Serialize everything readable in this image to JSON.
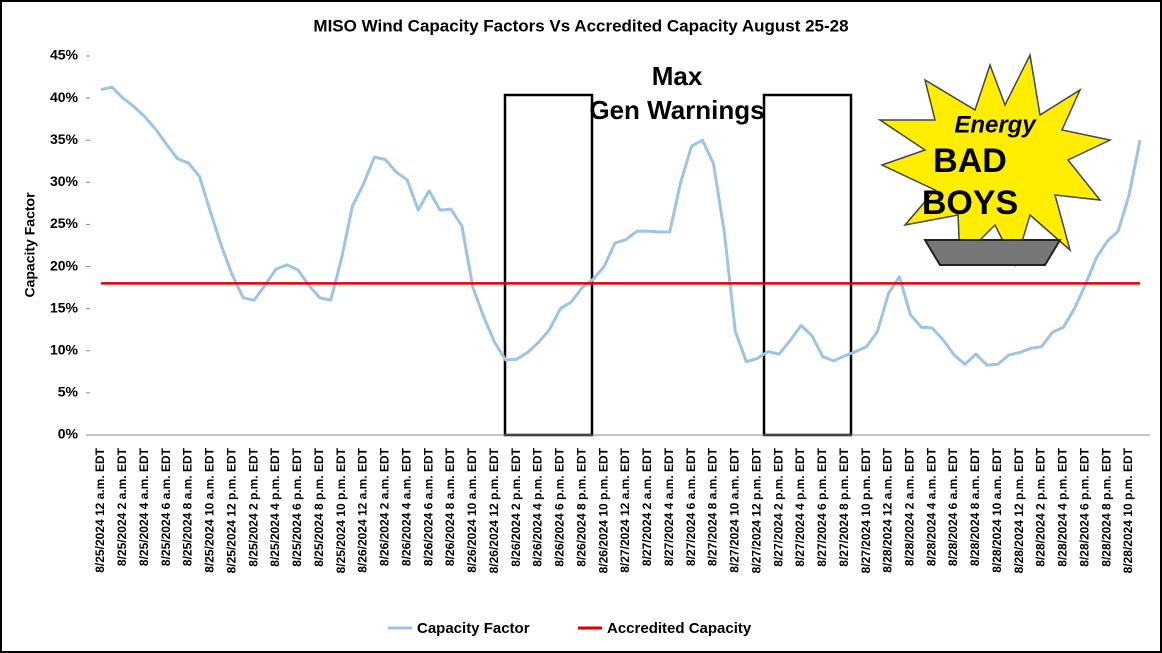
{
  "chart_data": {
    "type": "line",
    "title": "MISO Wind Capacity Factors Vs Accredited Capacity August 25-28",
    "y_label": "Capacity Factor",
    "annotation": "Max Gen Warnings",
    "logo": {
      "top": "Energy",
      "middle": "BAD",
      "bottom": "BOYS"
    },
    "categories": [
      "8/25/2024 12 a.m. EDT",
      null,
      "8/25/2024 2 a.m. EDT",
      null,
      "8/25/2024 4 a.m. EDT",
      null,
      "8/25/2024 6 a.m. EDT",
      null,
      "8/25/2024 8 a.m. EDT",
      null,
      "8/25/2024 10 a.m. EDT",
      null,
      "8/25/2024 12 p.m. EDT",
      null,
      "8/25/2024 2 p.m. EDT",
      null,
      "8/25/2024 4 p.m. EDT",
      null,
      "8/25/2024 6 p.m. EDT",
      null,
      "8/25/2024 8 p.m. EDT",
      null,
      "8/25/2024 10 p.m. EDT",
      null,
      "8/26/2024 12 a.m. EDT",
      null,
      "8/26/2024 2 a.m. EDT",
      null,
      "8/26/2024 4 a.m. EDT",
      null,
      "8/26/2024 6 a.m. EDT",
      null,
      "8/26/2024 8 a.m. EDT",
      null,
      "8/26/2024 10 a.m. EDT",
      null,
      "8/26/2024 12 p.m. EDT",
      null,
      "8/26/2024 2 p.m. EDT",
      null,
      "8/26/2024 4 p.m. EDT",
      null,
      "8/26/2024 6 p.m. EDT",
      null,
      "8/26/2024 8 p.m. EDT",
      null,
      "8/26/2024 10 p.m. EDT",
      null,
      "8/27/2024 12 a.m. EDT",
      null,
      "8/27/2024 2 a.m. EDT",
      null,
      "8/27/2024 4 a.m. EDT",
      null,
      "8/27/2024 6 a.m. EDT",
      null,
      "8/27/2024 8 a.m. EDT",
      null,
      "8/27/2024 10 a.m. EDT",
      null,
      "8/27/2024 12 p.m. EDT",
      null,
      "8/27/2024 2 p.m. EDT",
      null,
      "8/27/2024 4 p.m. EDT",
      null,
      "8/27/2024 6 p.m. EDT",
      null,
      "8/27/2024 8 p.m. EDT",
      null,
      "8/27/2024 10 p.m. EDT",
      null,
      "8/28/2024 12 a.m. EDT",
      null,
      "8/28/2024 2 a.m. EDT",
      null,
      "8/28/2024 4 a.m. EDT",
      null,
      "8/28/2024 6 a.m. EDT",
      null,
      "8/28/2024 8 a.m. EDT",
      null,
      "8/28/2024 10 a.m. EDT",
      null,
      "8/28/2024 12 p.m. EDT",
      null,
      "8/28/2024 2 p.m. EDT",
      null,
      "8/28/2024 4 p.m. EDT",
      null,
      "8/28/2024 6 p.m. EDT",
      null,
      "8/28/2024 8 p.m. EDT",
      null,
      "8/28/2024 10 p.m. EDT",
      null
    ],
    "series": [
      {
        "name": "Capacity Factor",
        "color": "#9dc3e6",
        "values": [
          41,
          41.3,
          40,
          39,
          37.8,
          36.3,
          34.5,
          32.8,
          32.3,
          30.7,
          26.5,
          22.5,
          19,
          16.3,
          16,
          17.8,
          19.7,
          20.2,
          19.6,
          17.8,
          16.3,
          16,
          21,
          27.2,
          29.8,
          33,
          32.7,
          31.2,
          30.3,
          26.7,
          29,
          26.7,
          26.8,
          24.8,
          17.5,
          14,
          11,
          8.9,
          9,
          9.8,
          11,
          12.5,
          15,
          15.8,
          17.5,
          18.5,
          20,
          22.8,
          23.2,
          24.2,
          24.2,
          24.1,
          24.1,
          30,
          34.3,
          35,
          32.2,
          24,
          12.3,
          8.7,
          9.1,
          9.9,
          9.6,
          11.2,
          13,
          11.8,
          9.3,
          8.8,
          9.4,
          9.9,
          10.5,
          12.3,
          16.8,
          18.8,
          14.3,
          12.8,
          12.7,
          11.3,
          9.5,
          8.4,
          9.6,
          8.3,
          8.4,
          9.5,
          9.8,
          10.3,
          10.5,
          12.2,
          12.8,
          15,
          17.8,
          21,
          23,
          24.2,
          28.5,
          35
        ]
      },
      {
        "name": "Accredited Capacity",
        "color": "#e00000",
        "values": [
          18,
          18,
          18,
          18,
          18,
          18,
          18,
          18,
          18,
          18,
          18,
          18,
          18,
          18,
          18,
          18,
          18,
          18,
          18,
          18,
          18,
          18,
          18,
          18,
          18,
          18,
          18,
          18,
          18,
          18,
          18,
          18,
          18,
          18,
          18,
          18,
          18,
          18,
          18,
          18,
          18,
          18,
          18,
          18,
          18,
          18,
          18,
          18,
          18,
          18,
          18,
          18,
          18,
          18,
          18,
          18,
          18,
          18,
          18,
          18,
          18,
          18,
          18,
          18,
          18,
          18,
          18,
          18,
          18,
          18,
          18,
          18,
          18,
          18,
          18,
          18,
          18,
          18,
          18,
          18,
          18,
          18,
          18,
          18,
          18,
          18,
          18,
          18,
          18,
          18,
          18,
          18,
          18,
          18,
          18,
          18
        ]
      }
    ],
    "ylim": [
      0,
      45
    ],
    "yticks": [
      {
        "value": 0,
        "label": "0%"
      },
      {
        "value": 5,
        "label": "5%"
      },
      {
        "value": 10,
        "label": "10%"
      },
      {
        "value": 15,
        "label": "15%"
      },
      {
        "value": 20,
        "label": "20%"
      },
      {
        "value": 25,
        "label": "25%"
      },
      {
        "value": 30,
        "label": "30%"
      },
      {
        "value": 35,
        "label": "35%"
      },
      {
        "value": 40,
        "label": "40%"
      },
      {
        "value": 45,
        "label": "45%"
      }
    ],
    "grid": false,
    "legend": "bottom"
  }
}
